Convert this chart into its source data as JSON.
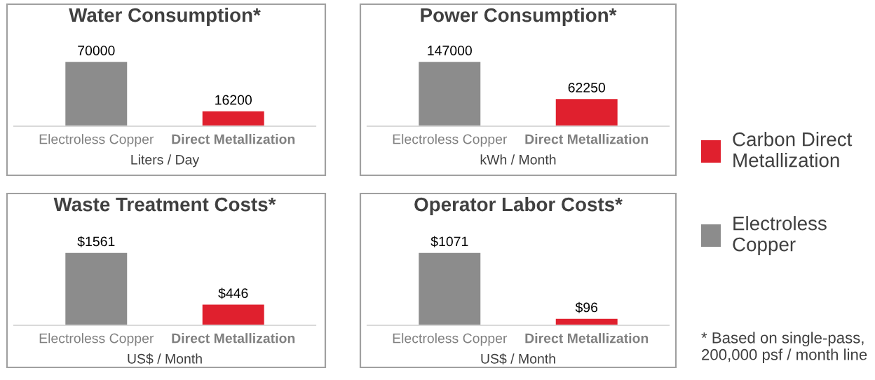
{
  "chart_data": [
    {
      "type": "bar",
      "title": "Water Consumption*",
      "xlabel": "Liters / Day",
      "categories": [
        "Electroless Copper",
        "Direct Metallization"
      ],
      "values": [
        70000,
        16200
      ],
      "colors": [
        "#8c8c8c",
        "#e0202e"
      ],
      "data_labels": true,
      "legend": false
    },
    {
      "type": "bar",
      "title": "Power Consumption*",
      "xlabel": "kWh / Month",
      "categories": [
        "Electroless Copper",
        "Direct Metallization"
      ],
      "data_labels": true,
      "legend": "right",
      "series": [
        {
          "name": "Carbon Direct Metallization",
          "color": "#e0202e",
          "values": [
            null,
            62250
          ]
        },
        {
          "name": "Electroless Copper",
          "color": "#8c8c8c",
          "values": [
            147000,
            null
          ]
        }
      ]
    },
    {
      "type": "bar",
      "title": "Waste Treatment Costs*",
      "xlabel": "US$ / Month",
      "categories": [
        "Electroless Copper",
        "Direct Metallization"
      ],
      "values": [
        1561,
        446
      ],
      "value_labels": [
        "$1561",
        "$446"
      ],
      "colors": [
        "#8c8c8c",
        "#e0202e"
      ],
      "legend": false
    },
    {
      "type": "bar",
      "title": "Operator Labor Costs*",
      "xlabel": "US$ / Month",
      "categories": [
        "Electroless Copper",
        "Direct Metallization"
      ],
      "values": [
        1071,
        96
      ],
      "value_labels": [
        "$1071",
        "$96"
      ],
      "colors": [
        "#8c8c8c",
        "#e0202e"
      ],
      "legend": false,
      "annotations": [
        "* Based on single-pass,\n200,000 psf / month line"
      ]
    }
  ]
}
